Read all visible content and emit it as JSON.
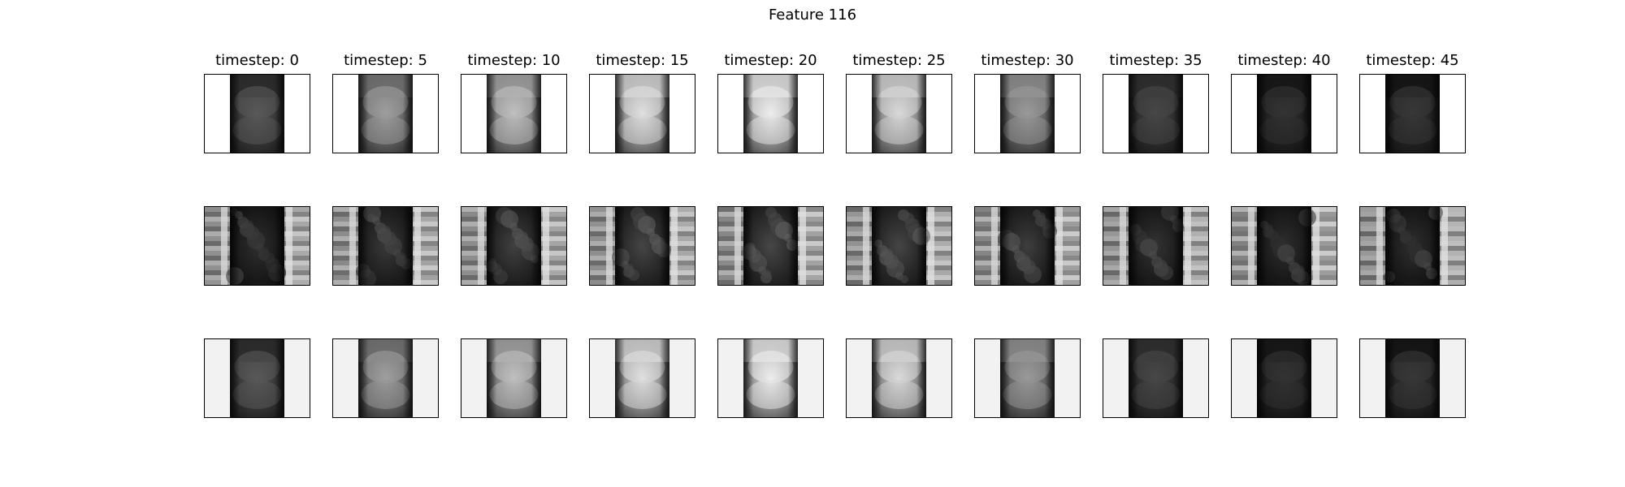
{
  "figure": {
    "title": "Feature 116",
    "column_titles": [
      "timestep: 0",
      "timestep: 5",
      "timestep: 10",
      "timestep: 15",
      "timestep: 20",
      "timestep: 25",
      "timestep: 30",
      "timestep: 35",
      "timestep: 40",
      "timestep: 45"
    ],
    "colormap": "grayscale",
    "rows": [
      {
        "row": 1,
        "side_color": "#ffffff",
        "top_band": [
          "#2a2a2a",
          "#6e6e6e",
          "#9a9a9a",
          "#c8c8c8",
          "#d6d6d6",
          "#c4c4c4",
          "#8a8a8a",
          "#2e2e2e",
          "#161616",
          "#141414"
        ],
        "center_brightness": [
          0.35,
          0.62,
          0.75,
          0.88,
          0.93,
          0.85,
          0.6,
          0.28,
          0.2,
          0.22
        ]
      },
      {
        "row": 2,
        "side_color": "#9a9a9a",
        "top_band": [
          "#151515",
          "#191919",
          "#1b1b1b",
          "#1d1d1d",
          "#1e1e1e",
          "#1d1d1d",
          "#1b1b1b",
          "#181818",
          "#151515",
          "#141414"
        ],
        "center_brightness": [
          0.18,
          0.22,
          0.25,
          0.27,
          0.28,
          0.27,
          0.24,
          0.2,
          0.18,
          0.18
        ]
      },
      {
        "row": 3,
        "side_color": "#f2f2f2",
        "top_band": [
          "#2a2a2a",
          "#6e6e6e",
          "#9a9a9a",
          "#c8c8c8",
          "#d6d6d6",
          "#c4c4c4",
          "#8a8a8a",
          "#2e2e2e",
          "#161616",
          "#141414"
        ],
        "center_brightness": [
          0.35,
          0.62,
          0.75,
          0.88,
          0.93,
          0.85,
          0.6,
          0.28,
          0.2,
          0.22
        ]
      }
    ]
  }
}
